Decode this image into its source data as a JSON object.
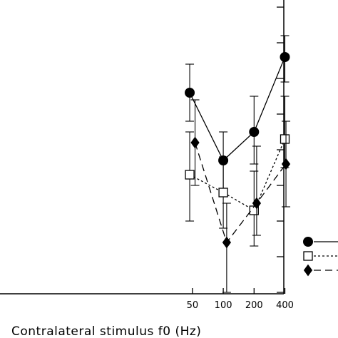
{
  "chart_data": {
    "type": "line",
    "title": "",
    "xlabel": "Contralateral stimulus f0 (Hz)",
    "ylabel": "",
    "x_scale": "log",
    "x_ticks": [
      50,
      100,
      200,
      400
    ],
    "x_tick_labels": [
      "50",
      "100",
      "200",
      "400"
    ],
    "xlim": [
      32,
      820
    ],
    "ylim": [
      0,
      8
    ],
    "y_tick_values": [
      0,
      1,
      2,
      3,
      4,
      5,
      6,
      7,
      8
    ],
    "y_tick_labels_visible": false,
    "grid": false,
    "legend": {
      "placement": "right",
      "labels_visible": false
    },
    "series": [
      {
        "marker": "filled-circle",
        "line_style": "solid",
        "x": [
          47,
          100,
          200,
          400
        ],
        "y": [
          5.6,
          3.7,
          4.5,
          6.6
        ],
        "err_low": [
          4.8,
          2.9,
          3.6,
          5.9
        ],
        "err_high": [
          6.4,
          4.5,
          5.5,
          7.2
        ]
      },
      {
        "marker": "open-square",
        "line_style": "dotted",
        "x": [
          47,
          100,
          200,
          400
        ],
        "y": [
          3.3,
          2.8,
          2.3,
          4.3
        ],
        "err_low": [
          2.0,
          1.8,
          1.3,
          3.5
        ],
        "err_high": [
          4.5,
          3.8,
          3.4,
          5.5
        ]
      },
      {
        "marker": "filled-diamond",
        "line_style": "dashed",
        "x": [
          53,
          108,
          212,
          410
        ],
        "y": [
          4.2,
          1.4,
          2.5,
          3.6
        ],
        "err_low": [
          3.0,
          0.0,
          1.6,
          2.4
        ],
        "err_high": [
          5.4,
          2.5,
          4.1,
          4.8
        ]
      }
    ]
  }
}
